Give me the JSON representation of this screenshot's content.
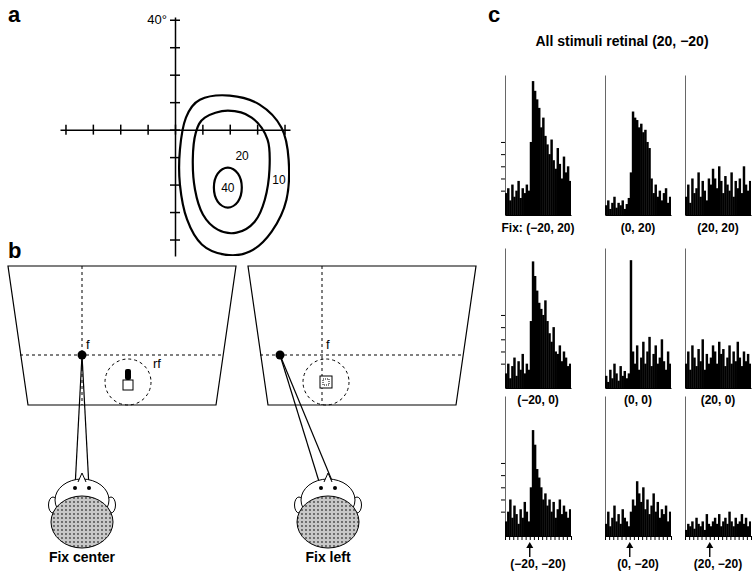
{
  "figure": {
    "labels": [
      "a",
      "b",
      "c"
    ],
    "c_title": "All stimuli retinal (20, −20)"
  },
  "diagram": {
    "scenes": [
      {
        "label": "Fix center",
        "fixation_label": "f",
        "rf_label": "rf"
      },
      {
        "label": "Fix left",
        "fixation_label": "f"
      }
    ]
  },
  "chart_data": [
    {
      "type": "contour",
      "xlim": [
        -42,
        42
      ],
      "ylim": [
        -46,
        41
      ],
      "xticks": [
        -40,
        -30,
        -20,
        -10,
        0,
        10,
        20,
        30,
        40
      ],
      "yticks": [
        -40,
        -30,
        -20,
        -10,
        0,
        10,
        20,
        30,
        40
      ],
      "tick_labels": false,
      "annotations": [
        {
          "text": "40°",
          "x": 0,
          "y": 40
        }
      ],
      "contours": [
        {
          "level": 10,
          "label_x": 38.0,
          "label_y": -18.2,
          "x": [
            9.1,
            20.0,
            30.9,
            38.9,
            41.5,
            40.7,
            35.3,
            27.3,
            18.2,
            9.8,
            4.4,
            1.8,
            1.8,
            4.0
          ],
          "y": [
            10.9,
            12.4,
            9.1,
            0.7,
            -10.9,
            -25.5,
            -37.1,
            -44.4,
            -45.5,
            -41.8,
            -32.7,
            -20.0,
            -7.3,
            4.4
          ]
        },
        {
          "level": 20,
          "label_x": 24.5,
          "label_y": -9.5,
          "x": [
            10.9,
            19.3,
            28.0,
            33.8,
            34.5,
            32.8,
            29.1,
            22.5,
            15.6,
            10.2,
            7.3,
            6.5,
            7.6
          ],
          "y": [
            4.4,
            6.9,
            4.4,
            -3.6,
            -14.5,
            -25.5,
            -33.5,
            -37.5,
            -36.4,
            -30.9,
            -21.8,
            -10.9,
            -1.1
          ]
        },
        {
          "level": 40,
          "label_x": 19.3,
          "label_y": -21.1,
          "x": [
            19.3,
            23.0,
            24.4,
            23.0,
            19.3,
            15.6,
            14.2,
            15.6
          ],
          "y": [
            -13.8,
            -16.0,
            -21.1,
            -26.2,
            -28.4,
            -26.2,
            -21.1,
            -16.0
          ]
        }
      ]
    },
    {
      "type": "histogram",
      "x_label": "Fix: (−20, 20)",
      "color": "#000000",
      "tick_labels": false,
      "xlim": [
        -300,
        500
      ],
      "ylim": [
        0,
        115
      ],
      "yticks": [
        20,
        30,
        40,
        50,
        60
      ],
      "bins": [
        -300,
        -275,
        -250,
        -225,
        -200,
        -175,
        -150,
        -125,
        -100,
        -75,
        -50,
        -25,
        0,
        25,
        50,
        75,
        100,
        125,
        150,
        175,
        200,
        225,
        250,
        275,
        300,
        325,
        350,
        375,
        400,
        425,
        450,
        475,
        500
      ],
      "values": [
        18,
        22,
        12,
        25,
        15,
        20,
        28,
        14,
        22,
        18,
        25,
        20,
        60,
        110,
        102,
        95,
        88,
        72,
        80,
        65,
        58,
        50,
        62,
        45,
        38,
        55,
        42,
        30,
        48,
        35,
        40,
        28
      ]
    },
    {
      "type": "histogram",
      "x_label": "(0, 20)",
      "color": "#000000",
      "tick_labels": false,
      "xlim": [
        -300,
        500
      ],
      "ylim": [
        0,
        115
      ],
      "bins": [
        -300,
        -275,
        -250,
        -225,
        -200,
        -175,
        -150,
        -125,
        -100,
        -75,
        -50,
        -25,
        0,
        25,
        50,
        75,
        100,
        125,
        150,
        175,
        200,
        225,
        250,
        275,
        300,
        325,
        350,
        375,
        400,
        425,
        450,
        475,
        500
      ],
      "values": [
        8,
        12,
        5,
        10,
        15,
        6,
        10,
        8,
        12,
        5,
        9,
        14,
        35,
        85,
        80,
        78,
        72,
        75,
        68,
        70,
        60,
        55,
        30,
        18,
        25,
        15,
        20,
        12,
        18,
        22,
        10,
        15
      ]
    },
    {
      "type": "histogram",
      "x_label": "(20, 20)",
      "color": "#000000",
      "tick_labels": false,
      "xlim": [
        -300,
        500
      ],
      "ylim": [
        0,
        115
      ],
      "bins": [
        -300,
        -275,
        -250,
        -225,
        -200,
        -175,
        -150,
        -125,
        -100,
        -75,
        -50,
        -25,
        0,
        25,
        50,
        75,
        100,
        125,
        150,
        175,
        200,
        225,
        250,
        275,
        300,
        325,
        350,
        375,
        400,
        425,
        450,
        475,
        500
      ],
      "values": [
        15,
        25,
        10,
        30,
        18,
        22,
        35,
        15,
        28,
        20,
        12,
        30,
        25,
        38,
        30,
        22,
        40,
        28,
        18,
        32,
        25,
        20,
        35,
        15,
        28,
        22,
        30,
        18,
        40,
        25,
        20,
        28
      ]
    },
    {
      "type": "histogram",
      "x_label": "(−20, 0)",
      "color": "#000000",
      "tick_labels": false,
      "xlim": [
        -300,
        500
      ],
      "ylim": [
        0,
        115
      ],
      "yticks": [
        20,
        30,
        40,
        50,
        60
      ],
      "bins": [
        -300,
        -275,
        -250,
        -225,
        -200,
        -175,
        -150,
        -125,
        -100,
        -75,
        -50,
        -25,
        0,
        25,
        50,
        75,
        100,
        125,
        150,
        175,
        200,
        225,
        250,
        275,
        300,
        325,
        350,
        375,
        400,
        425,
        450,
        475,
        500
      ],
      "values": [
        12,
        20,
        8,
        18,
        25,
        10,
        22,
        15,
        28,
        12,
        20,
        15,
        55,
        104,
        92,
        80,
        70,
        65,
        60,
        72,
        55,
        45,
        38,
        50,
        30,
        28,
        35,
        22,
        30,
        25,
        18,
        20
      ]
    },
    {
      "type": "histogram",
      "x_label": "(0, 0)",
      "color": "#000000",
      "tick_labels": false,
      "xlim": [
        -300,
        500
      ],
      "ylim": [
        0,
        115
      ],
      "bins": [
        -300,
        -275,
        -250,
        -225,
        -200,
        -175,
        -150,
        -125,
        -100,
        -75,
        -50,
        -25,
        0,
        25,
        50,
        75,
        100,
        125,
        150,
        175,
        200,
        225,
        250,
        275,
        300,
        325,
        350,
        375,
        400,
        425,
        450,
        475,
        500
      ],
      "values": [
        10,
        5,
        15,
        8,
        20,
        12,
        6,
        18,
        10,
        14,
        8,
        12,
        105,
        30,
        20,
        35,
        15,
        25,
        38,
        20,
        30,
        42,
        18,
        28,
        35,
        20,
        25,
        40,
        22,
        15,
        30,
        20
      ]
    },
    {
      "type": "histogram",
      "x_label": "(20, 0)",
      "color": "#000000",
      "tick_labels": false,
      "xlim": [
        -300,
        500
      ],
      "ylim": [
        0,
        115
      ],
      "bins": [
        -300,
        -275,
        -250,
        -225,
        -200,
        -175,
        -150,
        -125,
        -100,
        -75,
        -50,
        -25,
        0,
        25,
        50,
        75,
        100,
        125,
        150,
        175,
        200,
        225,
        250,
        275,
        300,
        325,
        350,
        375,
        400,
        425,
        450,
        475,
        500
      ],
      "values": [
        20,
        30,
        15,
        35,
        25,
        18,
        32,
        22,
        40,
        15,
        28,
        20,
        25,
        35,
        30,
        20,
        38,
        28,
        32,
        18,
        25,
        35,
        20,
        30,
        22,
        38,
        25,
        18,
        30,
        22,
        28,
        20
      ]
    },
    {
      "type": "histogram",
      "x_label": "(−20, −20)",
      "color": "#000000",
      "tick_labels": false,
      "xlim": [
        -300,
        500
      ],
      "ylim": [
        0,
        115
      ],
      "yticks": [
        20,
        30,
        40,
        50,
        60
      ],
      "xticks": [
        -300,
        -250,
        -200,
        -150,
        -100,
        -50,
        0,
        50,
        100,
        150,
        200,
        250,
        300,
        350,
        400,
        450,
        500
      ],
      "onset": 0,
      "bins": [
        -300,
        -275,
        -250,
        -225,
        -200,
        -175,
        -150,
        -125,
        -100,
        -75,
        -50,
        -25,
        0,
        25,
        50,
        75,
        100,
        125,
        150,
        175,
        200,
        225,
        250,
        275,
        300,
        325,
        350,
        375,
        400,
        425,
        450,
        475,
        500
      ],
      "values": [
        12,
        20,
        30,
        15,
        25,
        18,
        10,
        22,
        15,
        28,
        20,
        12,
        40,
        87,
        75,
        55,
        48,
        40,
        30,
        35,
        25,
        30,
        20,
        28,
        15,
        22,
        30,
        18,
        25,
        20,
        15,
        22
      ]
    },
    {
      "type": "histogram",
      "x_label": "(0, −20)",
      "color": "#000000",
      "tick_labels": false,
      "xlim": [
        -300,
        500
      ],
      "ylim": [
        0,
        115
      ],
      "xticks": [
        -300,
        -250,
        -200,
        -150,
        -100,
        -50,
        0,
        50,
        100,
        150,
        200,
        250,
        300,
        350,
        400,
        450,
        500
      ],
      "onset": 0,
      "bins": [
        -300,
        -275,
        -250,
        -225,
        -200,
        -175,
        -150,
        -125,
        -100,
        -75,
        -50,
        -25,
        0,
        25,
        50,
        75,
        100,
        125,
        150,
        175,
        200,
        225,
        250,
        275,
        300,
        325,
        350,
        375,
        400,
        425,
        450,
        475,
        500
      ],
      "values": [
        10,
        20,
        8,
        15,
        25,
        12,
        18,
        10,
        22,
        15,
        12,
        8,
        20,
        30,
        25,
        45,
        35,
        28,
        40,
        22,
        30,
        18,
        25,
        35,
        20,
        28,
        15,
        22,
        18,
        25,
        12,
        20
      ]
    },
    {
      "type": "histogram",
      "x_label": "(20, −20)",
      "color": "#000000",
      "tick_labels": false,
      "xlim": [
        -300,
        500
      ],
      "ylim": [
        0,
        115
      ],
      "xticks": [
        -300,
        -250,
        -200,
        -150,
        -100,
        -50,
        0,
        50,
        100,
        150,
        200,
        250,
        300,
        350,
        400,
        450,
        500
      ],
      "onset": 0,
      "bins": [
        -300,
        -275,
        -250,
        -225,
        -200,
        -175,
        -150,
        -125,
        -100,
        -75,
        -50,
        -25,
        0,
        25,
        50,
        75,
        100,
        125,
        150,
        175,
        200,
        225,
        250,
        275,
        300,
        325,
        350,
        375,
        400,
        425,
        450,
        475,
        500
      ],
      "values": [
        5,
        10,
        8,
        12,
        6,
        15,
        10,
        8,
        12,
        5,
        18,
        10,
        8,
        12,
        15,
        10,
        18,
        8,
        12,
        15,
        10,
        20,
        12,
        8,
        15,
        10,
        12,
        18,
        10,
        15,
        8,
        12
      ]
    }
  ]
}
